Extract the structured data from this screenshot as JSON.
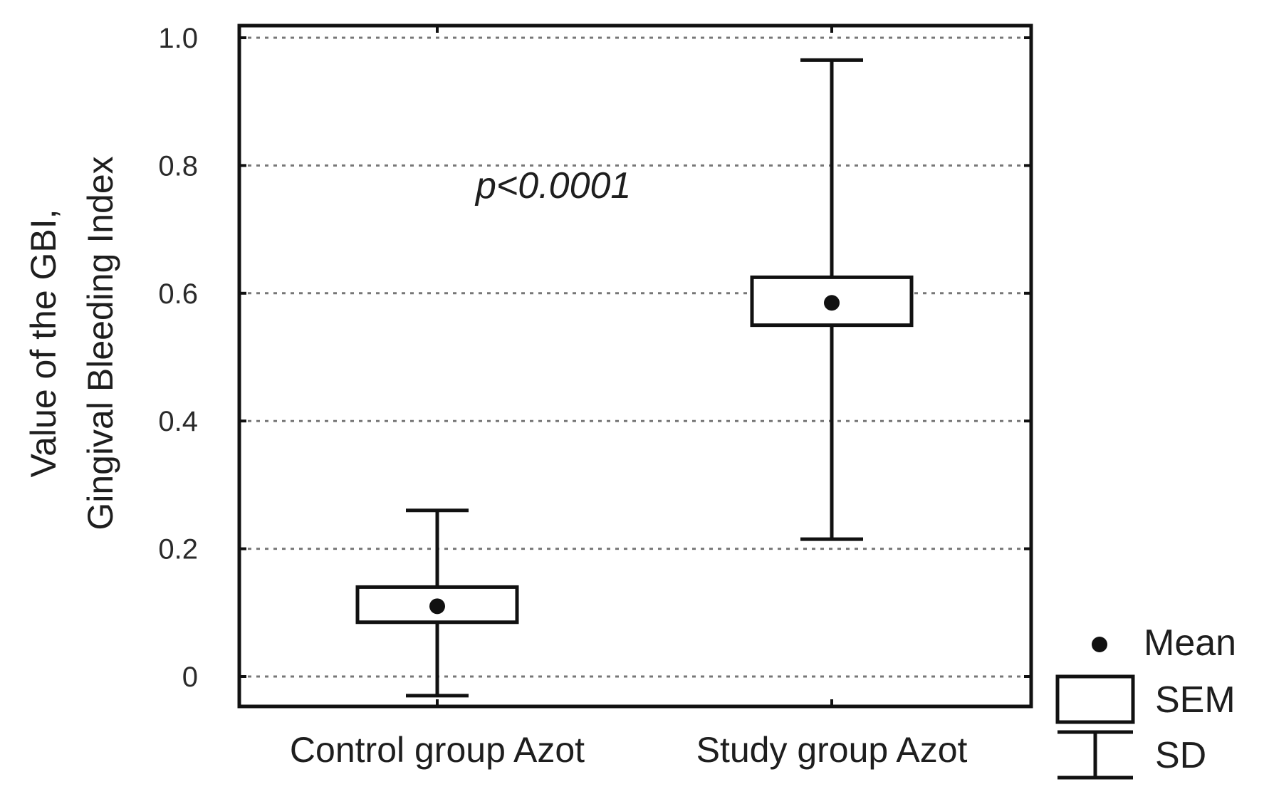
{
  "chart_data": {
    "type": "box",
    "ylabel_lines": [
      "Value of the GBI,",
      "Gingival Bleeding Index"
    ],
    "xlabel": "",
    "ylim": [
      -0.05,
      1.0
    ],
    "yticks": [
      0,
      0.2,
      0.4,
      0.6,
      0.8,
      1.0
    ],
    "ytick_labels": [
      "0",
      "0.2",
      "0.4",
      "0.6",
      "0.8",
      "1.0"
    ],
    "grid": true,
    "categories": [
      "Control group Azot",
      "Study group Azot"
    ],
    "groups": [
      {
        "category": "Control group Azot",
        "mean": 0.11,
        "sem_low": 0.085,
        "sem_high": 0.14,
        "sd_low": -0.03,
        "sd_high": 0.26
      },
      {
        "category": "Study group Azot",
        "mean": 0.585,
        "sem_low": 0.55,
        "sem_high": 0.625,
        "sd_low": 0.215,
        "sd_high": 0.965
      }
    ],
    "annotation": "p<0.0001",
    "legend": {
      "position": "bottom-right",
      "items": [
        {
          "symbol": "mean",
          "label": "Mean"
        },
        {
          "symbol": "sem",
          "label": "SEM"
        },
        {
          "symbol": "sd",
          "label": "SD"
        }
      ]
    }
  }
}
